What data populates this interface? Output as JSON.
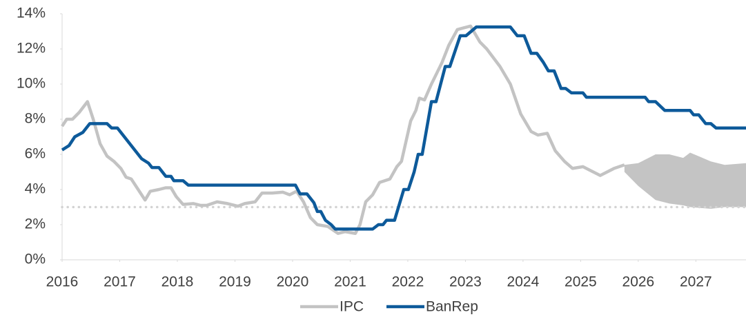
{
  "chart_data": {
    "type": "line",
    "xlim": [
      2016,
      2027.87
    ],
    "xticks": [
      2016,
      2017,
      2018,
      2019,
      2020,
      2021,
      2022,
      2023,
      2024,
      2025,
      2026,
      2027
    ],
    "ylim": [
      0,
      14
    ],
    "yticks": [
      {
        "value": 0,
        "label": "0%"
      },
      {
        "value": 2,
        "label": "2%"
      },
      {
        "value": 4,
        "label": "4%"
      },
      {
        "value": 6,
        "label": "6%"
      },
      {
        "value": 8,
        "label": "8%"
      },
      {
        "value": 10,
        "label": "10%"
      },
      {
        "value": 12,
        "label": "12%"
      },
      {
        "value": 14,
        "label": "14%"
      }
    ],
    "legend": "bottom",
    "hlines": [
      {
        "value": 3,
        "color": "#d3d3d3",
        "style": "dotted"
      }
    ],
    "band": {
      "color": "#c4c4c4",
      "x": [
        2025.76,
        2026.0,
        2026.3,
        2026.54,
        2026.78,
        2026.9,
        2027.26,
        2027.5,
        2027.87
      ],
      "upper": [
        5.4,
        5.5,
        6.0,
        6.0,
        5.8,
        6.1,
        5.6,
        5.4,
        5.5
      ],
      "lower": [
        5.0,
        4.2,
        3.4,
        3.2,
        3.1,
        3.0,
        2.9,
        3.0,
        3.0
      ]
    },
    "series": [
      {
        "name": "IPC",
        "color": "#c3c3c3",
        "x": [
          2016.0,
          2016.08,
          2016.18,
          2016.3,
          2016.44,
          2016.54,
          2016.66,
          2016.78,
          2016.9,
          2017.02,
          2017.11,
          2017.2,
          2017.32,
          2017.44,
          2017.53,
          2017.68,
          2017.8,
          2017.89,
          2017.98,
          2018.1,
          2018.28,
          2018.4,
          2018.51,
          2018.69,
          2018.87,
          2019.05,
          2019.17,
          2019.35,
          2019.47,
          2019.65,
          2019.83,
          2019.95,
          2020.07,
          2020.19,
          2020.31,
          2020.43,
          2020.61,
          2020.79,
          2020.91,
          2021.09,
          2021.17,
          2021.27,
          2021.39,
          2021.51,
          2021.69,
          2021.81,
          2021.89,
          2022.05,
          2022.14,
          2022.2,
          2022.29,
          2022.41,
          2022.59,
          2022.71,
          2022.86,
          2022.97,
          2023.09,
          2023.25,
          2023.37,
          2023.6,
          2023.78,
          2023.96,
          2024.14,
          2024.26,
          2024.42,
          2024.56,
          2024.72,
          2024.86,
          2025.04,
          2025.16,
          2025.34,
          2025.58,
          2025.76
        ],
        "values": [
          7.6,
          8.0,
          8.0,
          8.4,
          9.0,
          8.0,
          6.6,
          5.9,
          5.6,
          5.2,
          4.7,
          4.6,
          4.0,
          3.4,
          3.9,
          4.0,
          4.1,
          4.1,
          3.6,
          3.15,
          3.2,
          3.1,
          3.1,
          3.3,
          3.2,
          3.05,
          3.2,
          3.3,
          3.8,
          3.8,
          3.85,
          3.7,
          3.9,
          3.3,
          2.4,
          2.0,
          1.9,
          1.5,
          1.6,
          1.5,
          2.0,
          3.3,
          3.7,
          4.4,
          4.6,
          5.3,
          5.6,
          7.9,
          8.5,
          9.2,
          9.1,
          10.0,
          11.2,
          12.2,
          13.1,
          13.2,
          13.3,
          12.4,
          12.0,
          11.0,
          10.0,
          8.3,
          7.3,
          7.1,
          7.2,
          6.2,
          5.6,
          5.2,
          5.3,
          5.1,
          4.8,
          5.2,
          5.4
        ]
      },
      {
        "name": "BanRep",
        "color": "#0d5a9a",
        "x": [
          2016.0,
          2016.12,
          2016.22,
          2016.36,
          2016.48,
          2016.78,
          2016.86,
          2016.96,
          2017.08,
          2017.2,
          2017.26,
          2017.38,
          2017.5,
          2017.56,
          2017.68,
          2017.8,
          2017.89,
          2017.94,
          2018.1,
          2018.19,
          2020.05,
          2020.13,
          2020.25,
          2020.37,
          2020.43,
          2020.49,
          2020.57,
          2020.67,
          2020.74,
          2021.39,
          2021.49,
          2021.57,
          2021.63,
          2021.77,
          2021.93,
          2022.01,
          2022.11,
          2022.18,
          2022.25,
          2022.41,
          2022.49,
          2022.65,
          2022.73,
          2022.91,
          2023.01,
          2023.1,
          2023.19,
          2023.78,
          2023.9,
          2024.02,
          2024.14,
          2024.24,
          2024.35,
          2024.44,
          2024.54,
          2024.66,
          2024.74,
          2024.84,
          2025.04,
          2025.1,
          2026.12,
          2026.18,
          2026.3,
          2026.46,
          2026.9,
          2026.96,
          2027.05,
          2027.17,
          2027.26,
          2027.35,
          2027.87
        ],
        "values": [
          6.25,
          6.5,
          7.0,
          7.25,
          7.75,
          7.75,
          7.5,
          7.5,
          7.0,
          6.5,
          6.25,
          5.75,
          5.5,
          5.25,
          5.25,
          4.75,
          4.75,
          4.5,
          4.5,
          4.25,
          4.25,
          3.75,
          3.75,
          3.25,
          2.75,
          2.75,
          2.25,
          2.0,
          1.75,
          1.75,
          2.0,
          2.0,
          2.25,
          2.25,
          4.0,
          4.0,
          5.0,
          6.0,
          6.0,
          9.0,
          9.0,
          11.0,
          11.0,
          12.75,
          12.75,
          13.0,
          13.25,
          13.25,
          12.75,
          12.75,
          11.75,
          11.75,
          11.25,
          10.75,
          10.75,
          9.75,
          9.75,
          9.5,
          9.5,
          9.25,
          9.25,
          9.0,
          9.0,
          8.5,
          8.5,
          8.25,
          8.25,
          7.75,
          7.75,
          7.5,
          7.5
        ]
      }
    ]
  }
}
